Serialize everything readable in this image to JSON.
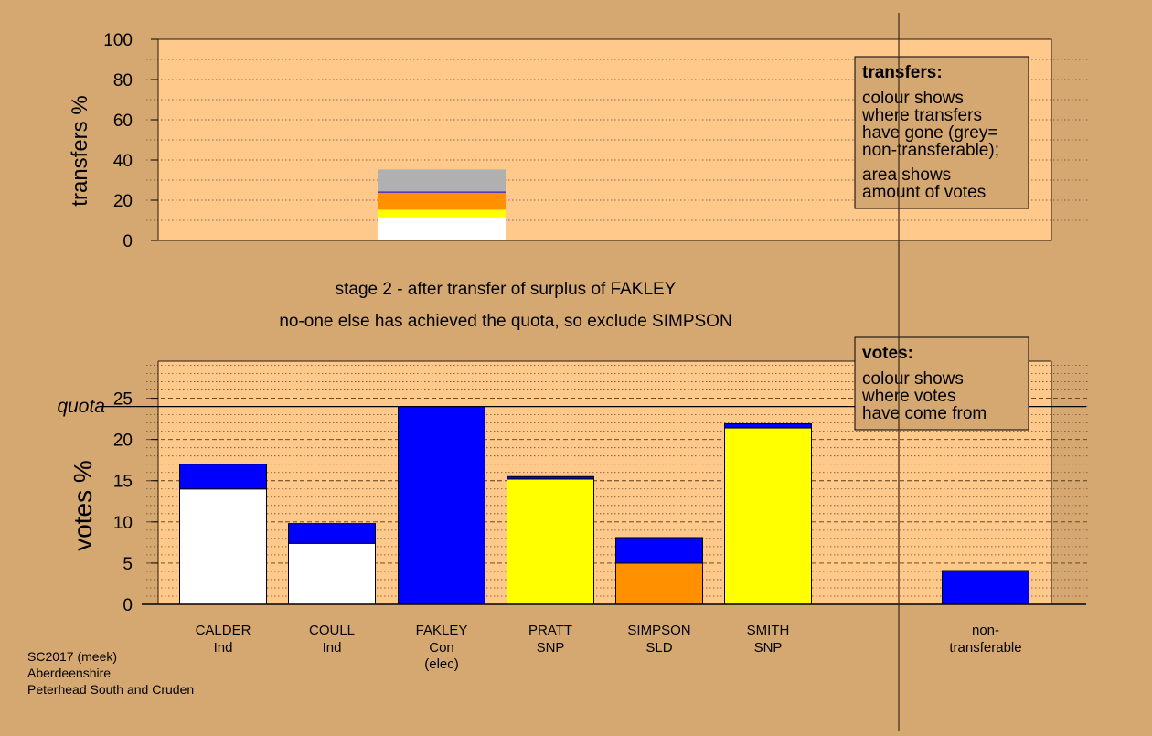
{
  "colors": {
    "page_bg": "#d6a871",
    "plot_bg": "#ffc98b",
    "Ind": "#ffffff",
    "Con": "#0000ff",
    "SNP": "#ffff00",
    "SLD": "#ff9100",
    "non_transferable": "#b0b0b0"
  },
  "stage": {
    "title": "stage 2 - after transfer of surplus of FAKLEY",
    "subtitle": "no-one else has achieved the quota, so exclude SIMPSON"
  },
  "legend_transfers": {
    "title": "transfers:",
    "lines": [
      "colour shows",
      "where transfers",
      "have gone (grey=",
      "non-transferable);",
      "area shows",
      "amount of votes"
    ]
  },
  "legend_votes": {
    "title": "votes:",
    "lines": [
      "colour shows",
      "where votes",
      "have come from"
    ]
  },
  "chart_data": [
    {
      "type": "bar",
      "name": "transfers",
      "ylabel": "transfers %",
      "ylim": [
        0,
        100
      ],
      "yticks": [
        0,
        20,
        40,
        60,
        80,
        100
      ],
      "grid": "dotted every 10",
      "bars": [
        {
          "category": "FAKLEY",
          "segments": [
            {
              "to": "Ind",
              "value": 11.5
            },
            {
              "to": "SNP",
              "value": 3.8
            },
            {
              "to": "SLD",
              "value": 8.5
            },
            {
              "to": "Con",
              "value": 0.5
            },
            {
              "to": "non_transferable",
              "value": 11.0
            }
          ]
        }
      ]
    },
    {
      "type": "bar",
      "name": "votes",
      "ylabel": "votes %",
      "ylim": [
        0,
        29.5
      ],
      "yticks": [
        0,
        5,
        10,
        15,
        20,
        25
      ],
      "quota": 24,
      "quota_label": "quota",
      "grid": "dashed every 5, dotted every 1",
      "categories": [
        {
          "name": "CALDER",
          "sub": [
            "Ind"
          ]
        },
        {
          "name": "COULL",
          "sub": [
            "Ind"
          ]
        },
        {
          "name": "FAKLEY",
          "sub": [
            "Con",
            "(elec)"
          ]
        },
        {
          "name": "PRATT",
          "sub": [
            "SNP"
          ]
        },
        {
          "name": "SIMPSON",
          "sub": [
            "SLD"
          ]
        },
        {
          "name": "SMITH",
          "sub": [
            "SNP"
          ]
        },
        {
          "name": "non-",
          "sub": [
            "transferable"
          ]
        }
      ],
      "bars": [
        {
          "category": "CALDER",
          "segments": [
            {
              "from": "Ind",
              "value": 14.0
            },
            {
              "from": "Con",
              "value": 3.0
            }
          ]
        },
        {
          "category": "COULL",
          "segments": [
            {
              "from": "Ind",
              "value": 7.4
            },
            {
              "from": "Con",
              "value": 2.4
            }
          ]
        },
        {
          "category": "FAKLEY",
          "segments": [
            {
              "from": "Con",
              "value": 24.0
            }
          ]
        },
        {
          "category": "PRATT",
          "segments": [
            {
              "from": "SNP",
              "value": 15.2
            },
            {
              "from": "Con",
              "value": 0.3
            }
          ]
        },
        {
          "category": "SIMPSON",
          "segments": [
            {
              "from": "SLD",
              "value": 5.0
            },
            {
              "from": "Con",
              "value": 3.1
            }
          ]
        },
        {
          "category": "SMITH",
          "segments": [
            {
              "from": "SNP",
              "value": 21.4
            },
            {
              "from": "Con",
              "value": 0.5
            }
          ]
        },
        {
          "category": "non-transferable",
          "segments": [
            {
              "from": "Con",
              "value": 4.1
            }
          ]
        }
      ]
    }
  ],
  "footer": [
    "SC2017 (meek)",
    "Aberdeenshire",
    "Peterhead South and Cruden"
  ]
}
